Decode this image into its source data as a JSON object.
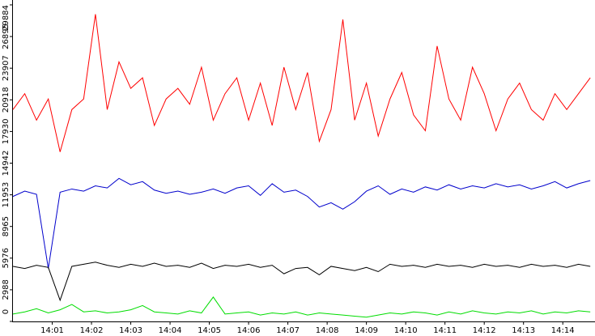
{
  "chart_data": {
    "type": "line",
    "x": [
      0,
      0.3,
      0.6,
      0.9,
      1.2,
      1.5,
      1.8,
      2.1,
      2.4,
      2.7,
      3.0,
      3.3,
      3.6,
      3.9,
      4.2,
      4.5,
      4.8,
      5.1,
      5.4,
      5.7,
      6.0,
      6.3,
      6.6,
      6.9,
      7.2,
      7.5,
      7.8,
      8.1,
      8.4,
      8.7,
      9.0,
      9.3,
      9.6,
      9.9,
      10.2,
      10.5,
      10.8,
      11.1,
      11.4,
      11.7,
      12.0,
      12.3,
      12.6,
      12.9,
      13.2,
      13.5,
      13.8,
      14.1,
      14.4,
      14.7
    ],
    "series": [
      {
        "color": "#ff0000",
        "values": [
          20000,
          21500,
          19000,
          21000,
          16000,
          20000,
          21000,
          29000,
          20000,
          24500,
          22000,
          23000,
          18500,
          21000,
          22000,
          20500,
          24000,
          19000,
          21500,
          23000,
          19000,
          22500,
          18500,
          24000,
          20000,
          23500,
          17000,
          20000,
          28500,
          19000,
          22500,
          17500,
          21000,
          23500,
          19500,
          18000,
          26000,
          21000,
          19000,
          24000,
          21500,
          18000,
          21000,
          22500,
          20000,
          19000,
          21500,
          20000,
          21500,
          23000
        ]
      },
      {
        "color": "#0000cc",
        "values": [
          11800,
          12300,
          12000,
          5000,
          12200,
          12500,
          12300,
          12800,
          12600,
          13500,
          12900,
          13200,
          12400,
          12100,
          12300,
          12000,
          12200,
          12500,
          12100,
          12600,
          12800,
          11900,
          13000,
          12200,
          12400,
          11800,
          10800,
          11200,
          10600,
          11300,
          12300,
          12800,
          12000,
          12500,
          12200,
          12700,
          12400,
          12900,
          12500,
          12800,
          12600,
          13000,
          12700,
          12900,
          12500,
          12800,
          13200,
          12600,
          13000,
          13300
        ]
      },
      {
        "color": "#000000",
        "values": [
          5200,
          5000,
          5300,
          5100,
          2000,
          5200,
          5400,
          5600,
          5300,
          5100,
          5400,
          5200,
          5500,
          5200,
          5300,
          5100,
          5500,
          5000,
          5300,
          5200,
          5400,
          5100,
          5300,
          4500,
          5000,
          5100,
          4400,
          5200,
          5000,
          4800,
          5100,
          4700,
          5400,
          5200,
          5300,
          5100,
          5400,
          5200,
          5300,
          5100,
          5400,
          5200,
          5300,
          5100,
          5400,
          5200,
          5300,
          5100,
          5400,
          5200
        ]
      },
      {
        "color": "#00dd00",
        "values": [
          700,
          900,
          1200,
          800,
          1100,
          1600,
          900,
          1000,
          800,
          900,
          1100,
          1500,
          900,
          800,
          700,
          1000,
          800,
          2300,
          700,
          800,
          900,
          600,
          800,
          700,
          900,
          600,
          800,
          700,
          600,
          500,
          400,
          600,
          800,
          700,
          900,
          800,
          600,
          900,
          700,
          1000,
          800,
          700,
          900,
          800,
          1000,
          700,
          900,
          800,
          1000,
          900
        ]
      }
    ],
    "xlim": [
      0,
      14.82
    ],
    "xticks": [
      {
        "value": 1,
        "label": "14:01"
      },
      {
        "value": 2,
        "label": "14:02"
      },
      {
        "value": 3,
        "label": "14:03"
      },
      {
        "value": 4,
        "label": "14:04"
      },
      {
        "value": 5,
        "label": "14:05"
      },
      {
        "value": 6,
        "label": "14:06"
      },
      {
        "value": 7,
        "label": "14:07"
      },
      {
        "value": 8,
        "label": "14:08"
      },
      {
        "value": 9,
        "label": "14:09"
      },
      {
        "value": 10,
        "label": "14:10"
      },
      {
        "value": 11,
        "label": "14:11"
      },
      {
        "value": 12,
        "label": "14:12"
      },
      {
        "value": 13,
        "label": "14:13"
      },
      {
        "value": 14,
        "label": "14:14"
      }
    ],
    "ylim": [
      0,
      29884
    ],
    "yticks": [
      0,
      2988,
      5976,
      8965,
      11953,
      14942,
      17930,
      20918,
      23907,
      26895,
      29884
    ]
  }
}
